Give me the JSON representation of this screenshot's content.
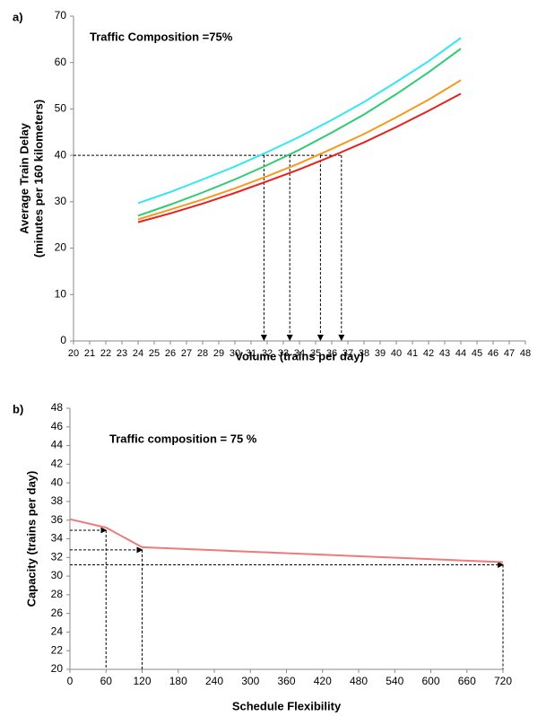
{
  "chart_data": [
    {
      "type": "line",
      "panel_label": "a)",
      "annotation": "Traffic Composition =75%",
      "xlabel": "Volume (trains per day)",
      "ylabel": [
        "Average Train Delay",
        "(minutes per 160 kilometers)"
      ],
      "x": [
        24,
        26,
        28,
        30,
        32,
        34,
        36,
        38,
        40,
        42,
        44
      ],
      "series": [
        {
          "color": "#33e6f0",
          "values": [
            29.7,
            32.1,
            34.8,
            37.6,
            40.7,
            44.0,
            47.6,
            51.5,
            55.8,
            60.3,
            65.3
          ]
        },
        {
          "color": "#2ecc71",
          "values": [
            27.0,
            29.4,
            32.0,
            34.8,
            37.9,
            41.2,
            44.9,
            48.8,
            53.2,
            57.9,
            63.0
          ]
        },
        {
          "color": "#f59a1b",
          "values": [
            26.2,
            28.3,
            30.5,
            32.9,
            35.5,
            38.3,
            41.4,
            44.6,
            48.2,
            52.0,
            56.2
          ]
        },
        {
          "color": "#e8201f",
          "values": [
            25.6,
            27.5,
            29.6,
            31.9,
            34.4,
            37.0,
            39.8,
            42.8,
            46.1,
            49.6,
            53.3
          ]
        }
      ],
      "reference": {
        "y": 40,
        "x": [
          31.8,
          33.4,
          35.3,
          36.6
        ]
      },
      "xlim": [
        20,
        48
      ],
      "xticks": [
        20,
        21,
        22,
        23,
        24,
        25,
        26,
        27,
        28,
        29,
        30,
        31,
        32,
        33,
        34,
        35,
        36,
        37,
        38,
        39,
        40,
        41,
        42,
        43,
        44,
        45,
        46,
        47,
        48
      ],
      "ylim": [
        0,
        70
      ],
      "yticks": [
        0,
        10,
        20,
        30,
        40,
        50,
        60,
        70
      ]
    },
    {
      "type": "line",
      "panel_label": "b)",
      "annotation": "Traffic composition = 75 %",
      "xlabel": "Schedule Flexibility",
      "ylabel": [
        "Capacity (trains per day)"
      ],
      "x": [
        0,
        60,
        120,
        720
      ],
      "series": [
        {
          "color": "#f07a7a",
          "values": [
            36.1,
            35.2,
            33.1,
            31.5
          ]
        }
      ],
      "xlim": [
        0,
        720
      ],
      "xticks": [
        0,
        60,
        120,
        180,
        240,
        300,
        360,
        420,
        480,
        540,
        600,
        660,
        720
      ],
      "ylim": [
        20,
        48
      ],
      "yticks": [
        20,
        22,
        24,
        26,
        28,
        30,
        32,
        34,
        36,
        38,
        40,
        42,
        44,
        46,
        48
      ]
    }
  ]
}
